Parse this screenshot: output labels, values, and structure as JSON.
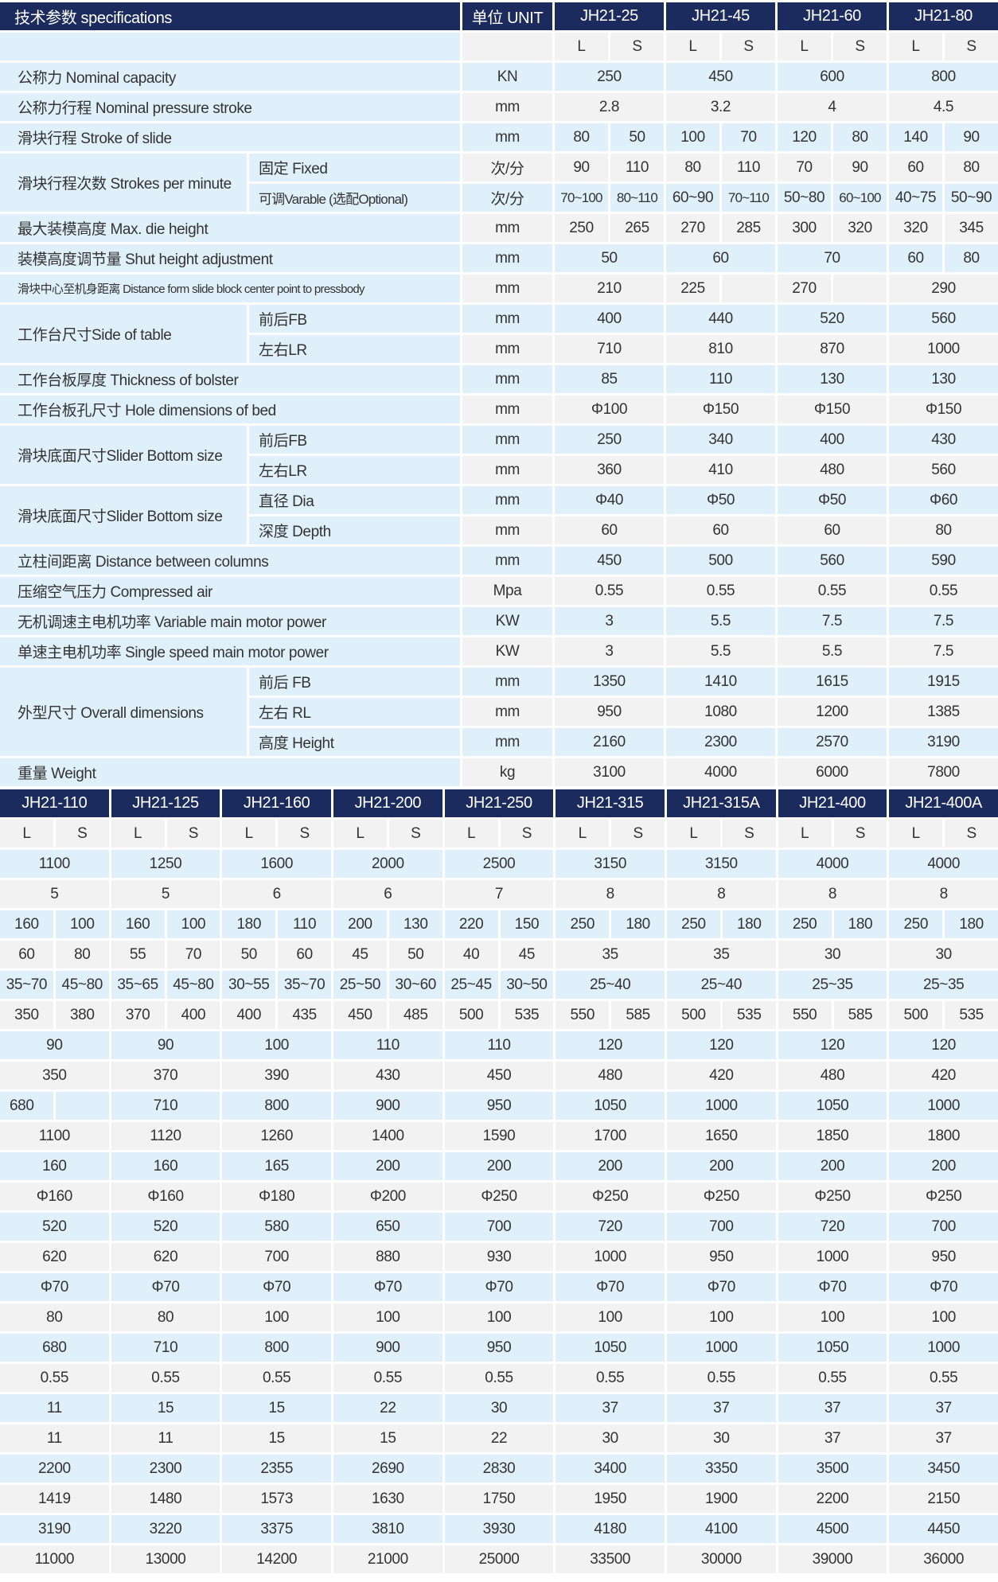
{
  "colors": {
    "header": "#1c2b5e",
    "row_blue": "#dff0fb",
    "row_gray": "#f2f2f2"
  },
  "top": {
    "header": {
      "spec": "技术参数 specifications",
      "unit": "单位 UNIT",
      "models": [
        "JH21-25",
        "JH21-45",
        "JH21-60",
        "JH21-80"
      ]
    },
    "ls": [
      "L",
      "S"
    ],
    "groups": [
      {
        "label": "公称力 Nominal capacity",
        "rows": [
          {
            "sub": null,
            "unit": "KN",
            "values": [
              "250",
              "450",
              "600",
              "800"
            ]
          }
        ]
      },
      {
        "label": "公称力行程 Nominal pressure stroke",
        "rows": [
          {
            "sub": null,
            "unit": "mm",
            "values": [
              "2.8",
              "3.2",
              "4",
              "4.5"
            ]
          }
        ]
      },
      {
        "label": "滑块行程 Stroke of slide",
        "rows": [
          {
            "sub": null,
            "unit": "mm",
            "values": [
              [
                "80",
                "50"
              ],
              [
                "100",
                "70"
              ],
              [
                "120",
                "80"
              ],
              [
                "140",
                "90"
              ]
            ]
          }
        ]
      },
      {
        "label": "滑块行程次数 Strokes per minute",
        "rows": [
          {
            "sub": "固定 Fixed",
            "unit": "次/分",
            "values": [
              [
                "90",
                "110"
              ],
              [
                "80",
                "110"
              ],
              [
                "70",
                "90"
              ],
              [
                "60",
                "80"
              ]
            ]
          },
          {
            "sub": "可调Varable (选配Optional)",
            "unit": "次/分",
            "values": [
              [
                "70~100",
                "80~110"
              ],
              [
                "60~90",
                "70~110"
              ],
              [
                "50~80",
                "60~100"
              ],
              [
                "40~75",
                "50~90"
              ]
            ]
          }
        ]
      },
      {
        "label": "最大装模高度 Max. die height",
        "rows": [
          {
            "sub": null,
            "unit": "mm",
            "values": [
              [
                "250",
                "265"
              ],
              [
                "270",
                "285"
              ],
              [
                "300",
                "320"
              ],
              [
                "320",
                "345"
              ]
            ]
          }
        ]
      },
      {
        "label": "装模高度调节量 Shut height adjustment",
        "rows": [
          {
            "sub": null,
            "unit": "mm",
            "values": [
              "50",
              "60",
              "70",
              [
                "60",
                "80"
              ]
            ]
          }
        ]
      },
      {
        "label": "滑块中心至机身距离 Distance form slide block center point to pressbody",
        "rows": [
          {
            "sub": null,
            "unit": "mm",
            "values": [
              "210",
              [
                "225",
                ""
              ],
              [
                "270",
                ""
              ],
              "290"
            ]
          }
        ]
      },
      {
        "label": "工作台尺寸Side of table",
        "rows": [
          {
            "sub": "前后FB",
            "unit": "mm",
            "values": [
              "400",
              "440",
              "520",
              "560"
            ]
          },
          {
            "sub": "左右LR",
            "unit": "mm",
            "values": [
              "710",
              "810",
              "870",
              "1000"
            ]
          }
        ]
      },
      {
        "label": "工作台板厚度 Thickness of bolster",
        "rows": [
          {
            "sub": null,
            "unit": "mm",
            "values": [
              "85",
              "110",
              "130",
              "130"
            ]
          }
        ]
      },
      {
        "label": "工作台板孔尺寸 Hole dimensions of bed",
        "rows": [
          {
            "sub": null,
            "unit": "mm",
            "values": [
              "Φ100",
              "Φ150",
              "Φ150",
              "Φ150"
            ]
          }
        ]
      },
      {
        "label": "滑块底面尺寸Slider Bottom size",
        "rows": [
          {
            "sub": "前后FB",
            "unit": "mm",
            "values": [
              "250",
              "340",
              "400",
              "430"
            ]
          },
          {
            "sub": "左右LR",
            "unit": "mm",
            "values": [
              "360",
              "410",
              "480",
              "560"
            ]
          }
        ]
      },
      {
        "label": "滑块底面尺寸Slider Bottom size",
        "rows": [
          {
            "sub": "直径 Dia",
            "unit": "mm",
            "values": [
              "Φ40",
              "Φ50",
              "Φ50",
              "Φ60"
            ]
          },
          {
            "sub": "深度 Depth",
            "unit": "mm",
            "values": [
              "60",
              "60",
              "60",
              "80"
            ]
          }
        ]
      },
      {
        "label": "立柱间距离 Distance between columns",
        "rows": [
          {
            "sub": null,
            "unit": "mm",
            "values": [
              "450",
              "500",
              "560",
              "590"
            ]
          }
        ]
      },
      {
        "label": "压缩空气压力 Compressed air",
        "rows": [
          {
            "sub": null,
            "unit": "Mpa",
            "values": [
              "0.55",
              "0.55",
              "0.55",
              "0.55"
            ]
          }
        ]
      },
      {
        "label": "无机调速主电机功率 Variable main motor power",
        "rows": [
          {
            "sub": null,
            "unit": "KW",
            "values": [
              "3",
              "5.5",
              "7.5",
              "7.5"
            ]
          }
        ]
      },
      {
        "label": "单速主电机功率 Single speed main motor power",
        "rows": [
          {
            "sub": null,
            "unit": "KW",
            "values": [
              "3",
              "5.5",
              "5.5",
              "7.5"
            ]
          }
        ]
      },
      {
        "label": "外型尺寸 Overall dimensions",
        "rows": [
          {
            "sub": "前后 FB",
            "unit": "mm",
            "values": [
              "1350",
              "1410",
              "1615",
              "1915"
            ]
          },
          {
            "sub": "左右 RL",
            "unit": "mm",
            "values": [
              "950",
              "1080",
              "1200",
              "1385"
            ]
          },
          {
            "sub": "高度 Height",
            "unit": "mm",
            "values": [
              "2160",
              "2300",
              "2570",
              "3190"
            ]
          }
        ]
      },
      {
        "label": "重量 Weight",
        "rows": [
          {
            "sub": null,
            "unit": "kg",
            "values": [
              "3100",
              "4000",
              "6000",
              "7800"
            ]
          }
        ]
      }
    ]
  },
  "bottom": {
    "models": [
      "JH21-110",
      "JH21-125",
      "JH21-160",
      "JH21-200",
      "JH21-250",
      "JH21-315",
      "JH21-315A",
      "JH21-400",
      "JH21-400A"
    ],
    "rows": [
      [
        "1100",
        "1250",
        "1600",
        "2000",
        "2500",
        "3150",
        "3150",
        "4000",
        "4000"
      ],
      [
        "5",
        "5",
        "6",
        "6",
        "7",
        "8",
        "8",
        "8",
        "8"
      ],
      [
        [
          "160",
          "100"
        ],
        [
          "160",
          "100"
        ],
        [
          "180",
          "110"
        ],
        [
          "200",
          "130"
        ],
        [
          "220",
          "150"
        ],
        [
          "250",
          "180"
        ],
        [
          "250",
          "180"
        ],
        [
          "250",
          "180"
        ],
        [
          "250",
          "180"
        ]
      ],
      [
        [
          "60",
          "80"
        ],
        [
          "55",
          "70"
        ],
        [
          "50",
          "60"
        ],
        [
          "45",
          "50"
        ],
        [
          "40",
          "45"
        ],
        "35",
        "35",
        "30",
        "30"
      ],
      [
        [
          "35~70",
          "45~80"
        ],
        [
          "35~65",
          "45~80"
        ],
        [
          "30~55",
          "35~70"
        ],
        [
          "25~50",
          "30~60"
        ],
        [
          "25~45",
          "30~50"
        ],
        "25~40",
        "25~40",
        "25~35",
        "25~35"
      ],
      [
        [
          "350",
          "380"
        ],
        [
          "370",
          "400"
        ],
        [
          "400",
          "435"
        ],
        [
          "450",
          "485"
        ],
        [
          "500",
          "535"
        ],
        [
          "550",
          "585"
        ],
        [
          "500",
          "535"
        ],
        [
          "550",
          "585"
        ],
        [
          "500",
          "535"
        ]
      ],
      [
        "90",
        "90",
        "100",
        "110",
        "110",
        "120",
        "120",
        "120",
        "120"
      ],
      [
        "350",
        "370",
        "390",
        "430",
        "450",
        "480",
        "420",
        "480",
        "420"
      ],
      [
        [
          "680",
          ""
        ],
        "710",
        "800",
        "900",
        "950",
        "1050",
        "1000",
        "1050",
        "1000"
      ],
      [
        "1100",
        "1120",
        "1260",
        "1400",
        "1590",
        "1700",
        "1650",
        "1850",
        "1800"
      ],
      [
        "160",
        "160",
        "165",
        "200",
        "200",
        "200",
        "200",
        "200",
        "200"
      ],
      [
        "Φ160",
        "Φ160",
        "Φ180",
        "Φ200",
        "Φ250",
        "Φ250",
        "Φ250",
        "Φ250",
        "Φ250"
      ],
      [
        "520",
        "520",
        "580",
        "650",
        "700",
        "720",
        "700",
        "720",
        "700"
      ],
      [
        "620",
        "620",
        "700",
        "880",
        "930",
        "1000",
        "950",
        "1000",
        "950"
      ],
      [
        "Φ70",
        "Φ70",
        "Φ70",
        "Φ70",
        "Φ70",
        "Φ70",
        "Φ70",
        "Φ70",
        "Φ70"
      ],
      [
        "80",
        "80",
        "100",
        "100",
        "100",
        "100",
        "100",
        "100",
        "100"
      ],
      [
        "680",
        "710",
        "800",
        "900",
        "950",
        "1050",
        "1000",
        "1050",
        "1000"
      ],
      [
        "0.55",
        "0.55",
        "0.55",
        "0.55",
        "0.55",
        "0.55",
        "0.55",
        "0.55",
        "0.55"
      ],
      [
        "11",
        "15",
        "15",
        "22",
        "30",
        "37",
        "37",
        "37",
        "37"
      ],
      [
        "11",
        "11",
        "15",
        "15",
        "22",
        "30",
        "30",
        "37",
        "37"
      ],
      [
        "2200",
        "2300",
        "2355",
        "2690",
        "2830",
        "3400",
        "3350",
        "3500",
        "3450"
      ],
      [
        "1419",
        "1480",
        "1573",
        "1630",
        "1750",
        "1950",
        "1900",
        "2200",
        "2150"
      ],
      [
        "3190",
        "3220",
        "3375",
        "3810",
        "3930",
        "4180",
        "4100",
        "4500",
        "4450"
      ],
      [
        "11000",
        "13000",
        "14200",
        "21000",
        "25000",
        "33500",
        "30000",
        "39000",
        "36000"
      ]
    ]
  }
}
